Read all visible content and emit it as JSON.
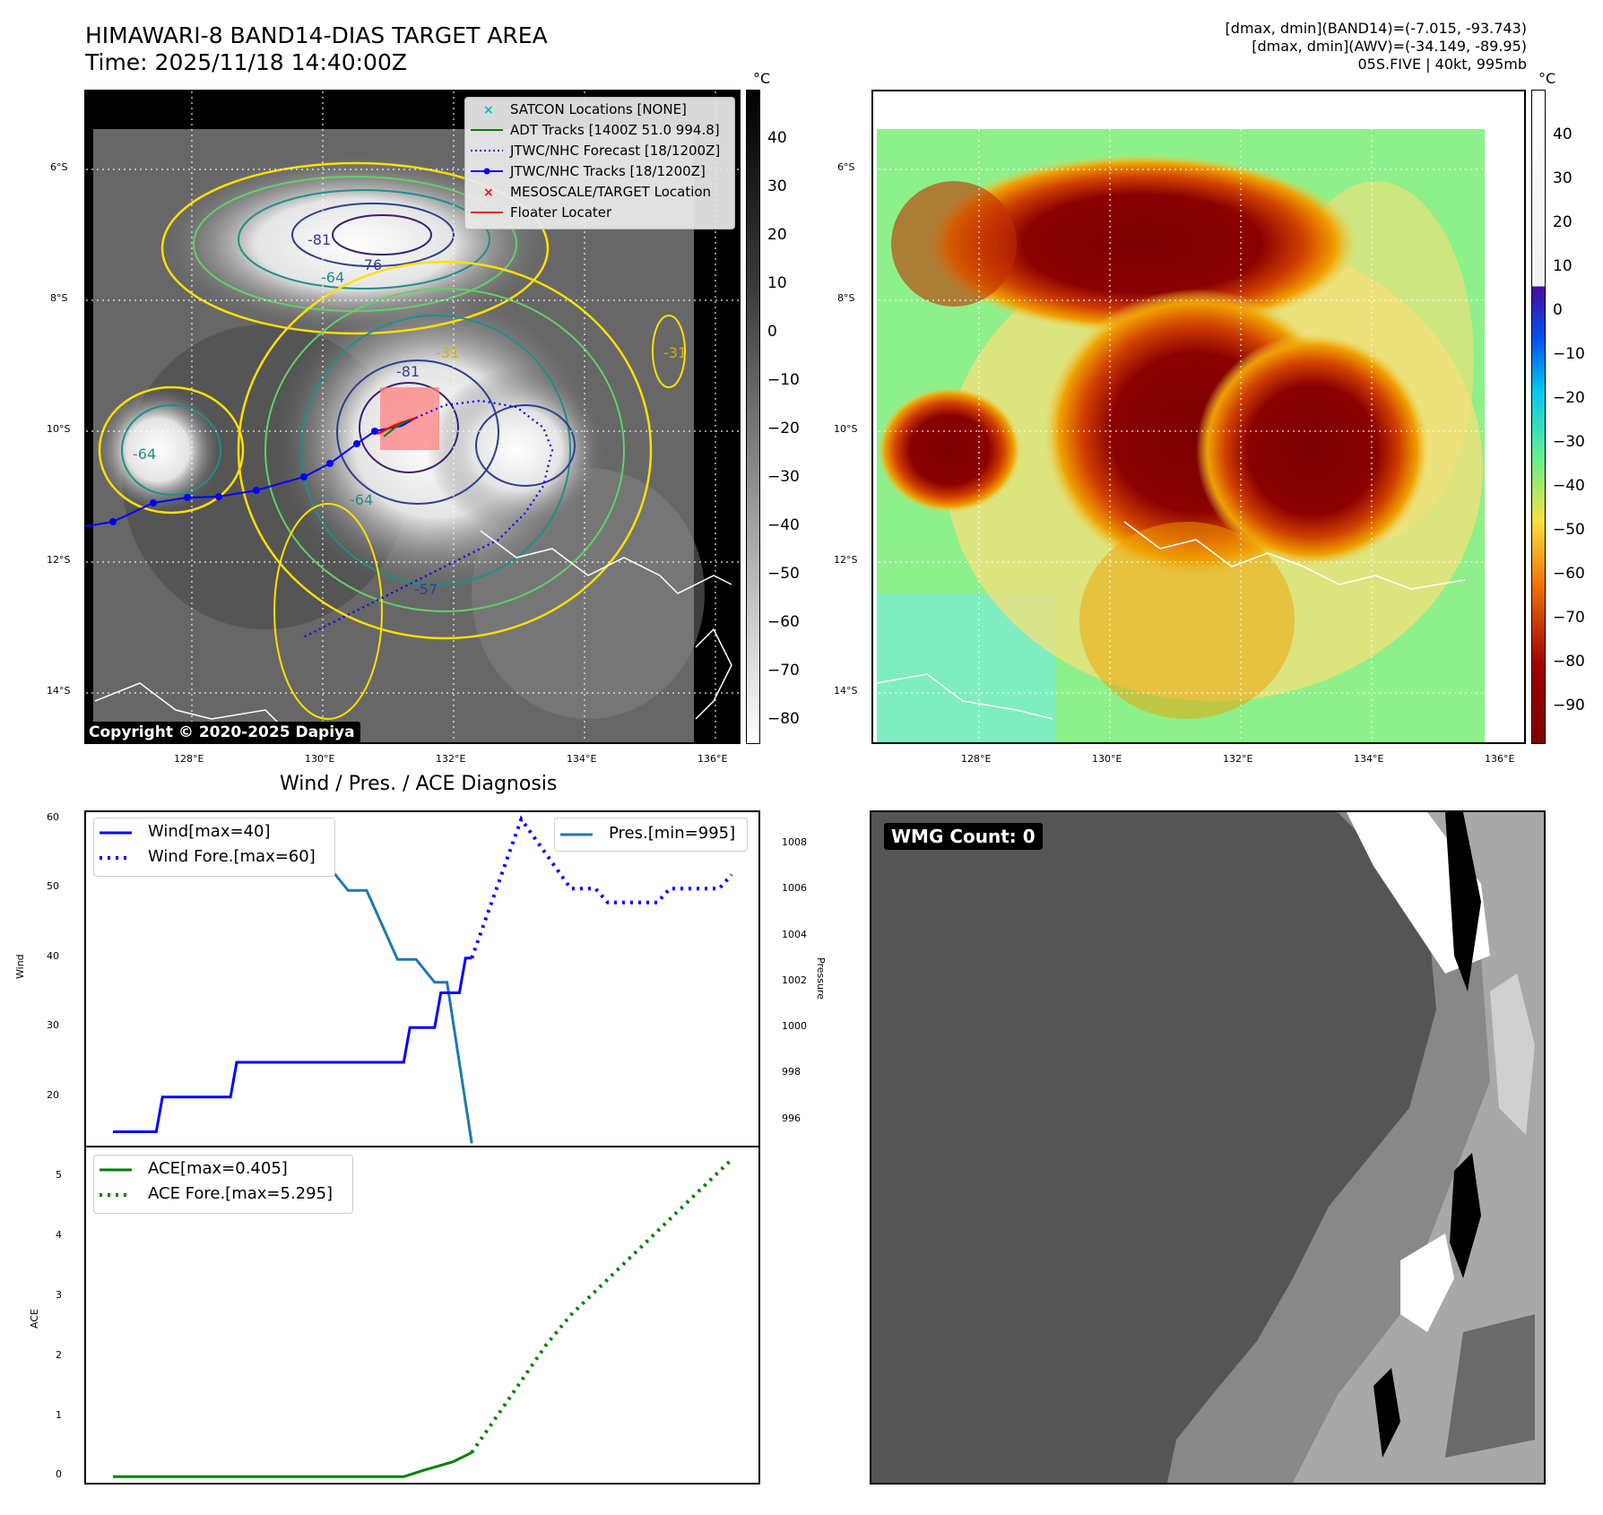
{
  "header": {
    "title_line1": "HIMAWARI-8 BAND14-DIAS TARGET AREA",
    "title_line2": "Time: 2025/11/18 14:40:00Z",
    "info_line1": "[dmax, dmin](BAND14)=(-7.015, -93.743)",
    "info_line2": "[dmax, dmin](AWV)=(-34.149, -89.95)",
    "info_line3": "05S.FIVE | 40kt, 995mb"
  },
  "map_axes": {
    "lat_ticks": [
      "6°S",
      "8°S",
      "10°S",
      "12°S",
      "14°S"
    ],
    "lon_ticks": [
      "128°E",
      "130°E",
      "132°E",
      "134°E",
      "136°E"
    ]
  },
  "ir_colorbar": {
    "unit": "°C",
    "ticks": [
      "40",
      "30",
      "20",
      "10",
      "0",
      "−10",
      "−20",
      "−30",
      "−40",
      "−50",
      "−60",
      "−70",
      "−80"
    ]
  },
  "awv_colorbar": {
    "unit": "°C",
    "ticks": [
      "40",
      "30",
      "20",
      "10",
      "0",
      "−10",
      "−20",
      "−30",
      "−40",
      "−50",
      "−60",
      "−70",
      "−80",
      "−90"
    ]
  },
  "map_legend": {
    "items": [
      {
        "label": "SATCON Locations [NONE]",
        "color": "#00bfbf",
        "style": "x"
      },
      {
        "label": "ADT Tracks [1400Z 51.0 994.8]",
        "color": "#007f00",
        "style": "line"
      },
      {
        "label": "JTWC/NHC Forecast [18/1200Z]",
        "color": "#0000ff",
        "style": "dotted"
      },
      {
        "label": "JTWC/NHC Tracks [18/1200Z]",
        "color": "#0000ff",
        "style": "line-dot"
      },
      {
        "label": "MESOSCALE/TARGET Location",
        "color": "#ff0000",
        "style": "x"
      },
      {
        "label": "Floater Locater",
        "color": "#ff0000",
        "style": "line"
      }
    ]
  },
  "contour_labels": [
    "-81",
    "-76",
    "-64",
    "-81",
    "-64",
    "-64",
    "-31",
    "-31",
    "-57"
  ],
  "copyright": "Copyright © 2020-2025 Dapiya",
  "diagnosis": {
    "title": "Wind / Pres. / ACE Diagnosis",
    "wind_ylabel": "Wind",
    "pressure_ylabel": "Pressure",
    "ace_ylabel": "ACE",
    "wind_legend": [
      "Wind[max=40]",
      "Wind Fore.[max=60]"
    ],
    "pres_legend": [
      "Pres.[min=995]"
    ],
    "ace_legend": [
      "ACE[max=0.405]",
      "ACE Fore.[max=5.295]"
    ],
    "wind_ticks": [
      "60",
      "50",
      "40",
      "30",
      "20"
    ],
    "pres_ticks": [
      "1008",
      "1006",
      "1004",
      "1002",
      "1000",
      "998",
      "996"
    ],
    "ace_ticks": [
      "5",
      "4",
      "3",
      "2",
      "1",
      "0"
    ]
  },
  "wmg": {
    "label": "WMG Count: 0"
  },
  "colors": {
    "wind": "#0000ff",
    "pressure": "#1f77b4",
    "ace": "#008000"
  },
  "chart_data": [
    {
      "type": "line",
      "name": "Wind",
      "ylabel": "Wind",
      "ylim": [
        13,
        61
      ],
      "series": [
        {
          "name": "Wind[max=40]",
          "x": [
            0,
            1,
            2,
            3,
            4,
            5,
            6,
            7,
            8,
            9,
            10,
            11,
            12,
            13,
            14,
            15,
            16,
            17,
            18,
            19,
            20,
            21,
            22,
            23,
            24,
            25,
            26,
            27,
            28,
            29,
            30,
            31,
            32,
            33,
            34,
            35,
            36,
            37,
            38,
            39,
            40,
            41,
            42,
            43,
            44,
            45,
            46,
            47,
            48,
            49,
            50,
            51,
            52,
            53,
            54,
            55,
            56,
            57,
            58
          ],
          "values": [
            15,
            15,
            15,
            15,
            15,
            15,
            15,
            15,
            20,
            20,
            20,
            20,
            20,
            20,
            20,
            20,
            20,
            20,
            20,
            20,
            25,
            25,
            25,
            25,
            25,
            25,
            25,
            25,
            25,
            25,
            25,
            25,
            25,
            25,
            25,
            25,
            25,
            25,
            25,
            25,
            25,
            25,
            25,
            25,
            25,
            25,
            25,
            25,
            30,
            30,
            30,
            30,
            30,
            35,
            35,
            35,
            35,
            40,
            40
          ]
        },
        {
          "name": "Wind Fore.[max=60]",
          "x": [
            58,
            62,
            66,
            70,
            74,
            78,
            80,
            82,
            84,
            86,
            88,
            90,
            92,
            94,
            96,
            98,
            100
          ],
          "values": [
            40,
            50,
            60,
            55,
            50,
            50,
            48,
            48,
            48,
            48,
            48,
            50,
            50,
            50,
            50,
            50,
            52
          ]
        }
      ]
    },
    {
      "type": "line",
      "name": "Pressure",
      "ylabel": "Pressure",
      "ylim": [
        994.9,
        1009.4
      ],
      "series": [
        {
          "name": "Pres.[min=995]",
          "x": [
            0,
            10,
            14,
            16,
            22,
            27,
            35,
            38,
            41,
            46,
            49,
            52,
            54,
            58
          ],
          "values": [
            1009,
            1009,
            1009,
            1008,
            1008,
            1007,
            1007,
            1006,
            1006,
            1003,
            1003,
            1002,
            1002,
            995
          ]
        }
      ]
    },
    {
      "type": "line",
      "name": "ACE",
      "ylabel": "ACE",
      "ylim": [
        -0.1,
        5.5
      ],
      "series": [
        {
          "name": "ACE[max=0.405]",
          "x": [
            0,
            10,
            20,
            30,
            40,
            47,
            50,
            55,
            58
          ],
          "values": [
            0,
            0,
            0,
            0,
            0,
            0,
            0.1,
            0.25,
            0.405
          ]
        },
        {
          "name": "ACE Fore.[max=5.295]",
          "x": [
            58,
            62,
            66,
            70,
            74,
            78,
            82,
            86,
            90,
            94,
            98,
            100
          ],
          "values": [
            0.405,
            1.0,
            1.6,
            2.2,
            2.7,
            3.1,
            3.5,
            3.9,
            4.3,
            4.7,
            5.1,
            5.295
          ]
        }
      ]
    }
  ]
}
